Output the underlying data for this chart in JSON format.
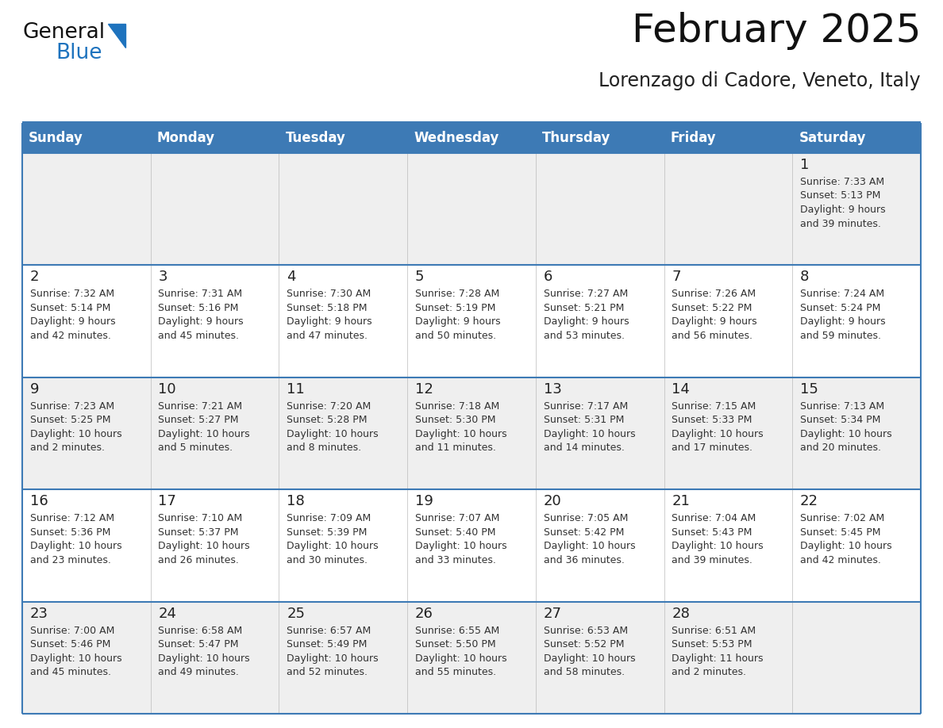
{
  "title": "February 2025",
  "subtitle": "Lorenzago di Cadore, Veneto, Italy",
  "days_of_week": [
    "Sunday",
    "Monday",
    "Tuesday",
    "Wednesday",
    "Thursday",
    "Friday",
    "Saturday"
  ],
  "header_bg": "#3D7AB5",
  "header_fg": "#FFFFFF",
  "cell_bg_odd": "#EFEFEF",
  "cell_bg_even": "#FFFFFF",
  "border_color": "#3D7AB5",
  "row_line_color": "#3D7AB5",
  "day_number_color": "#222222",
  "text_color": "#333333",
  "title_color": "#111111",
  "subtitle_color": "#222222",
  "generalblue_black": "#111111",
  "generalblue_blue": "#1E73BE",
  "logo_triangle_color": "#1E73BE",
  "title_fontsize": 36,
  "subtitle_fontsize": 17,
  "header_fontsize": 12,
  "day_num_fontsize": 13,
  "info_fontsize": 9,
  "weeks": [
    {
      "days": [
        {
          "day": null,
          "info": null
        },
        {
          "day": null,
          "info": null
        },
        {
          "day": null,
          "info": null
        },
        {
          "day": null,
          "info": null
        },
        {
          "day": null,
          "info": null
        },
        {
          "day": null,
          "info": null
        },
        {
          "day": 1,
          "info": "Sunrise: 7:33 AM\nSunset: 5:13 PM\nDaylight: 9 hours\nand 39 minutes."
        }
      ]
    },
    {
      "days": [
        {
          "day": 2,
          "info": "Sunrise: 7:32 AM\nSunset: 5:14 PM\nDaylight: 9 hours\nand 42 minutes."
        },
        {
          "day": 3,
          "info": "Sunrise: 7:31 AM\nSunset: 5:16 PM\nDaylight: 9 hours\nand 45 minutes."
        },
        {
          "day": 4,
          "info": "Sunrise: 7:30 AM\nSunset: 5:18 PM\nDaylight: 9 hours\nand 47 minutes."
        },
        {
          "day": 5,
          "info": "Sunrise: 7:28 AM\nSunset: 5:19 PM\nDaylight: 9 hours\nand 50 minutes."
        },
        {
          "day": 6,
          "info": "Sunrise: 7:27 AM\nSunset: 5:21 PM\nDaylight: 9 hours\nand 53 minutes."
        },
        {
          "day": 7,
          "info": "Sunrise: 7:26 AM\nSunset: 5:22 PM\nDaylight: 9 hours\nand 56 minutes."
        },
        {
          "day": 8,
          "info": "Sunrise: 7:24 AM\nSunset: 5:24 PM\nDaylight: 9 hours\nand 59 minutes."
        }
      ]
    },
    {
      "days": [
        {
          "day": 9,
          "info": "Sunrise: 7:23 AM\nSunset: 5:25 PM\nDaylight: 10 hours\nand 2 minutes."
        },
        {
          "day": 10,
          "info": "Sunrise: 7:21 AM\nSunset: 5:27 PM\nDaylight: 10 hours\nand 5 minutes."
        },
        {
          "day": 11,
          "info": "Sunrise: 7:20 AM\nSunset: 5:28 PM\nDaylight: 10 hours\nand 8 minutes."
        },
        {
          "day": 12,
          "info": "Sunrise: 7:18 AM\nSunset: 5:30 PM\nDaylight: 10 hours\nand 11 minutes."
        },
        {
          "day": 13,
          "info": "Sunrise: 7:17 AM\nSunset: 5:31 PM\nDaylight: 10 hours\nand 14 minutes."
        },
        {
          "day": 14,
          "info": "Sunrise: 7:15 AM\nSunset: 5:33 PM\nDaylight: 10 hours\nand 17 minutes."
        },
        {
          "day": 15,
          "info": "Sunrise: 7:13 AM\nSunset: 5:34 PM\nDaylight: 10 hours\nand 20 minutes."
        }
      ]
    },
    {
      "days": [
        {
          "day": 16,
          "info": "Sunrise: 7:12 AM\nSunset: 5:36 PM\nDaylight: 10 hours\nand 23 minutes."
        },
        {
          "day": 17,
          "info": "Sunrise: 7:10 AM\nSunset: 5:37 PM\nDaylight: 10 hours\nand 26 minutes."
        },
        {
          "day": 18,
          "info": "Sunrise: 7:09 AM\nSunset: 5:39 PM\nDaylight: 10 hours\nand 30 minutes."
        },
        {
          "day": 19,
          "info": "Sunrise: 7:07 AM\nSunset: 5:40 PM\nDaylight: 10 hours\nand 33 minutes."
        },
        {
          "day": 20,
          "info": "Sunrise: 7:05 AM\nSunset: 5:42 PM\nDaylight: 10 hours\nand 36 minutes."
        },
        {
          "day": 21,
          "info": "Sunrise: 7:04 AM\nSunset: 5:43 PM\nDaylight: 10 hours\nand 39 minutes."
        },
        {
          "day": 22,
          "info": "Sunrise: 7:02 AM\nSunset: 5:45 PM\nDaylight: 10 hours\nand 42 minutes."
        }
      ]
    },
    {
      "days": [
        {
          "day": 23,
          "info": "Sunrise: 7:00 AM\nSunset: 5:46 PM\nDaylight: 10 hours\nand 45 minutes."
        },
        {
          "day": 24,
          "info": "Sunrise: 6:58 AM\nSunset: 5:47 PM\nDaylight: 10 hours\nand 49 minutes."
        },
        {
          "day": 25,
          "info": "Sunrise: 6:57 AM\nSunset: 5:49 PM\nDaylight: 10 hours\nand 52 minutes."
        },
        {
          "day": 26,
          "info": "Sunrise: 6:55 AM\nSunset: 5:50 PM\nDaylight: 10 hours\nand 55 minutes."
        },
        {
          "day": 27,
          "info": "Sunrise: 6:53 AM\nSunset: 5:52 PM\nDaylight: 10 hours\nand 58 minutes."
        },
        {
          "day": 28,
          "info": "Sunrise: 6:51 AM\nSunset: 5:53 PM\nDaylight: 11 hours\nand 2 minutes."
        },
        {
          "day": null,
          "info": null
        }
      ]
    }
  ]
}
